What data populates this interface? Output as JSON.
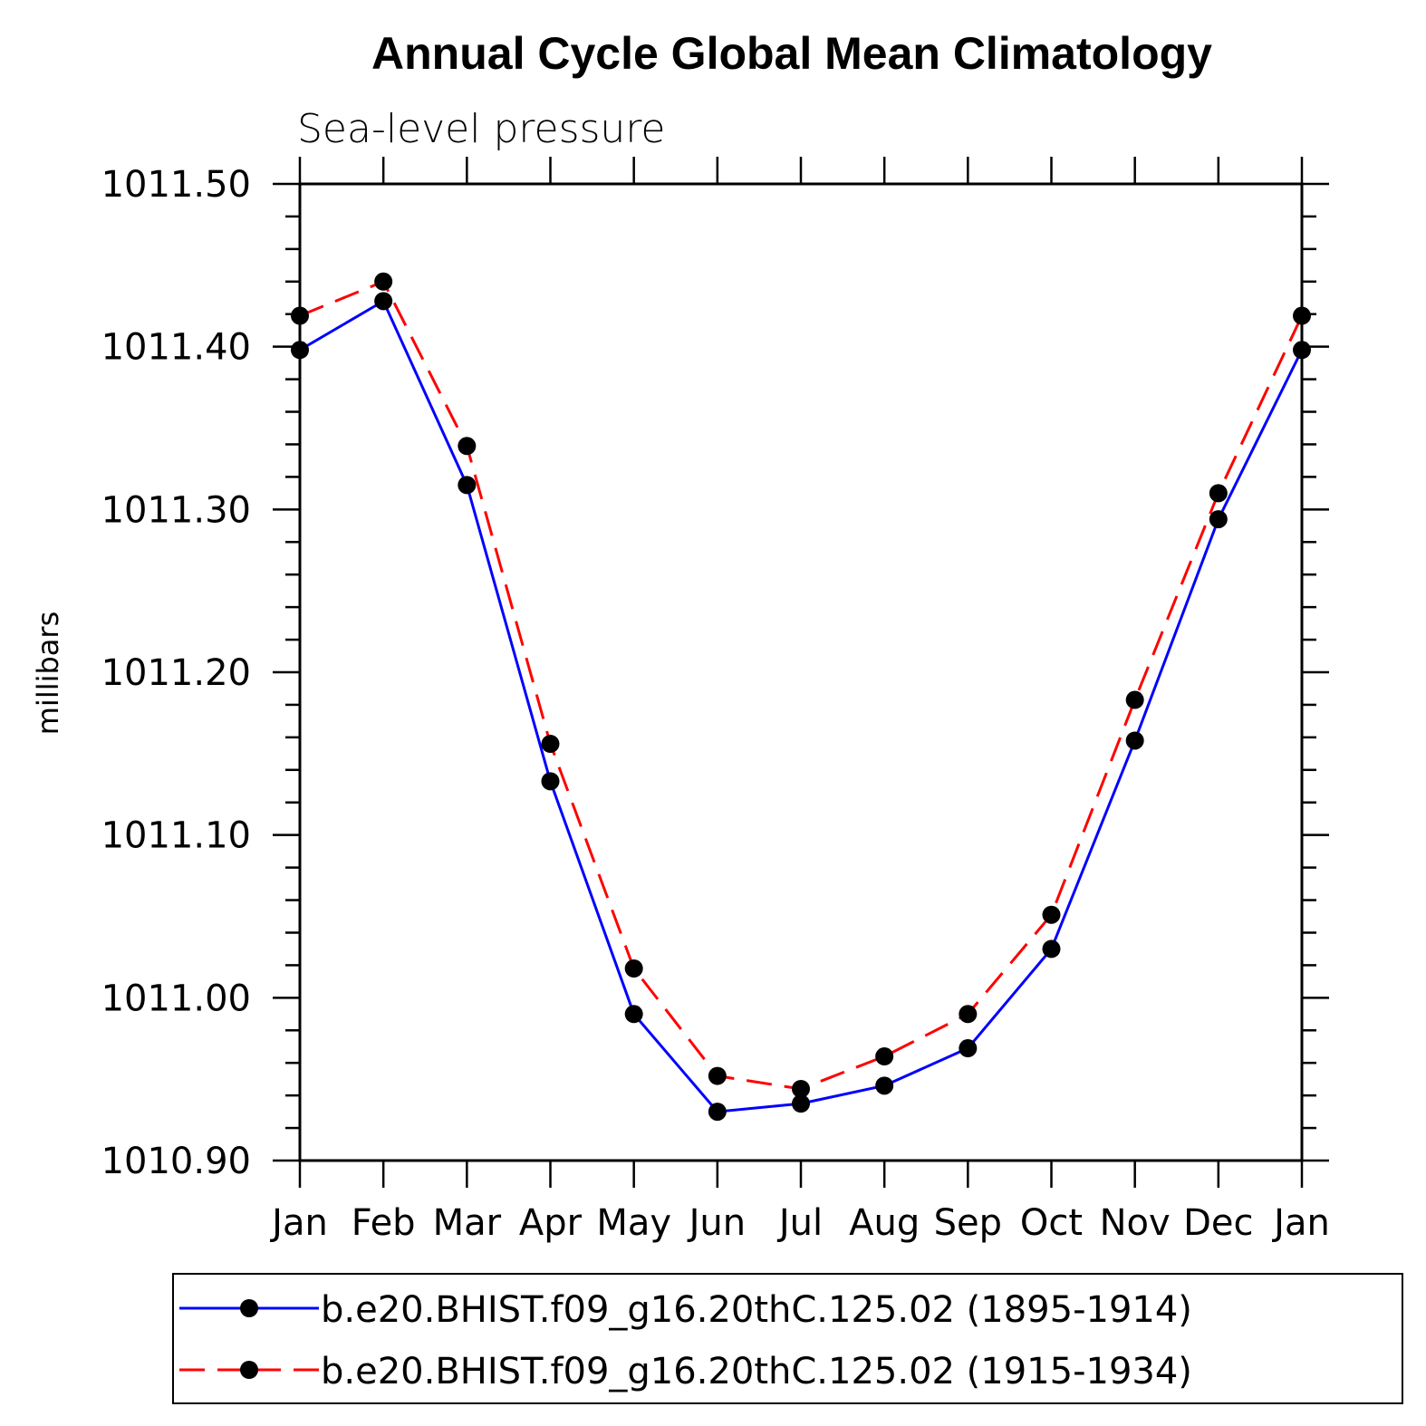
{
  "chart_data": {
    "type": "line",
    "title": "Annual Cycle Global Mean Climatology",
    "subtitle": "Sea-level pressure",
    "ylabel": "millibars",
    "xlabel": "",
    "ylim": [
      1010.9,
      1011.5
    ],
    "y_ticks": [
      "1011.50",
      "1011.40",
      "1011.30",
      "1011.20",
      "1011.10",
      "1011.00",
      "1010.90"
    ],
    "y_tick_values": [
      1011.5,
      1011.4,
      1011.3,
      1011.2,
      1011.1,
      1011.0,
      1010.9
    ],
    "categories": [
      "Jan",
      "Feb",
      "Mar",
      "Apr",
      "May",
      "Jun",
      "Jul",
      "Aug",
      "Sep",
      "Oct",
      "Nov",
      "Dec",
      "Jan"
    ],
    "grid": false,
    "legend_position": "bottom",
    "series": [
      {
        "name": "b.e20.BHIST.f09_g16.20thC.125.02 (1895-1914)",
        "color": "#0000ff",
        "dash": "solid",
        "values": [
          1011.398,
          1011.428,
          1011.315,
          1011.133,
          1010.99,
          1010.93,
          1010.935,
          1010.946,
          1010.969,
          1011.03,
          1011.158,
          1011.294,
          1011.398
        ]
      },
      {
        "name": "b.e20.BHIST.f09_g16.20thC.125.02 (1915-1934)",
        "color": "#ff0000",
        "dash": "dashed",
        "values": [
          1011.419,
          1011.44,
          1011.339,
          1011.156,
          1011.018,
          1010.952,
          1010.944,
          1010.964,
          1010.99,
          1011.051,
          1011.183,
          1011.31,
          1011.419
        ]
      }
    ]
  }
}
